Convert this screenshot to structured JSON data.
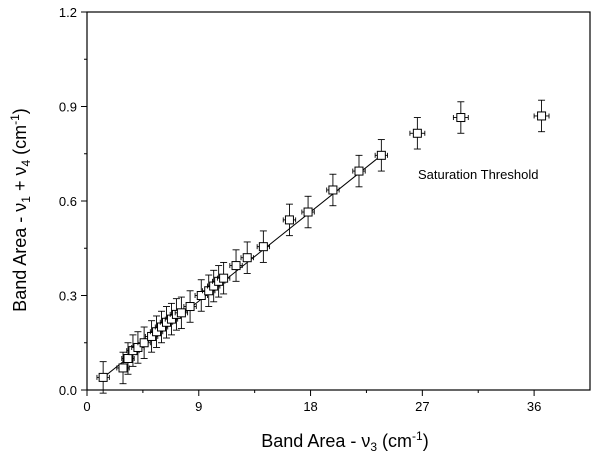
{
  "chart_data": {
    "type": "scatter",
    "title": "",
    "xlabel": {
      "prefix": "Band Area - ",
      "symbol": "ν",
      "sub": "3",
      "unit_open": " (cm",
      "sup": "-1",
      "unit_close": ")"
    },
    "ylabel": {
      "prefix": "Band Area -  ",
      "s1": "ν",
      "sub1": "1",
      "mid": " + ",
      "s2": "ν",
      "sub2": "4",
      "unit_open": " (cm",
      "sup": "-1",
      "unit_close": ")"
    },
    "xlim": [
      0,
      40.5
    ],
    "ylim": [
      0,
      1.2
    ],
    "xticks": [
      0,
      9,
      18,
      27,
      36
    ],
    "xtick_labels": [
      "0",
      "9",
      "18",
      "27",
      "36"
    ],
    "yticks": [
      0.0,
      0.3,
      0.6,
      0.9,
      1.2
    ],
    "ytick_labels": [
      "0.0",
      "0.3",
      "0.6",
      "0.9",
      "1.2"
    ],
    "grid": false,
    "annotation": {
      "text": "Saturation Threshold",
      "x": 31.5,
      "y": 0.685
    },
    "series": [
      {
        "points": [
          {
            "x": 1.3,
            "y": 0.04,
            "yerr": 0.05,
            "xerr": 0.5
          },
          {
            "x": 2.9,
            "y": 0.07,
            "yerr": 0.05,
            "xerr": 0.5
          },
          {
            "x": 3.3,
            "y": 0.1,
            "yerr": 0.05,
            "xerr": 0.5
          },
          {
            "x": 3.7,
            "y": 0.125,
            "yerr": 0.05,
            "xerr": 0.5
          },
          {
            "x": 4.1,
            "y": 0.135,
            "yerr": 0.05,
            "xerr": 0.5
          },
          {
            "x": 4.6,
            "y": 0.15,
            "yerr": 0.05,
            "xerr": 0.5
          },
          {
            "x": 5.2,
            "y": 0.17,
            "yerr": 0.05,
            "xerr": 0.5
          },
          {
            "x": 5.6,
            "y": 0.185,
            "yerr": 0.05,
            "xerr": 0.5
          },
          {
            "x": 6.0,
            "y": 0.2,
            "yerr": 0.05,
            "xerr": 0.5
          },
          {
            "x": 6.4,
            "y": 0.215,
            "yerr": 0.05,
            "xerr": 0.5
          },
          {
            "x": 6.8,
            "y": 0.225,
            "yerr": 0.05,
            "xerr": 0.5
          },
          {
            "x": 7.2,
            "y": 0.24,
            "yerr": 0.05,
            "xerr": 0.5
          },
          {
            "x": 7.6,
            "y": 0.245,
            "yerr": 0.05,
            "xerr": 0.5
          },
          {
            "x": 8.3,
            "y": 0.265,
            "yerr": 0.05,
            "xerr": 0.5
          },
          {
            "x": 9.2,
            "y": 0.3,
            "yerr": 0.05,
            "xerr": 0.5
          },
          {
            "x": 9.8,
            "y": 0.315,
            "yerr": 0.05,
            "xerr": 0.5
          },
          {
            "x": 10.2,
            "y": 0.33,
            "yerr": 0.05,
            "xerr": 0.5
          },
          {
            "x": 10.6,
            "y": 0.345,
            "yerr": 0.05,
            "xerr": 0.5
          },
          {
            "x": 11.0,
            "y": 0.355,
            "yerr": 0.05,
            "xerr": 0.5
          },
          {
            "x": 12.0,
            "y": 0.395,
            "yerr": 0.05,
            "xerr": 0.5
          },
          {
            "x": 12.9,
            "y": 0.42,
            "yerr": 0.05,
            "xerr": 0.5
          },
          {
            "x": 14.2,
            "y": 0.455,
            "yerr": 0.05,
            "xerr": 0.5
          },
          {
            "x": 16.3,
            "y": 0.54,
            "yerr": 0.05,
            "xerr": 0.5
          },
          {
            "x": 17.8,
            "y": 0.565,
            "yerr": 0.05,
            "xerr": 0.5
          },
          {
            "x": 19.8,
            "y": 0.635,
            "yerr": 0.05,
            "xerr": 0.5
          },
          {
            "x": 21.9,
            "y": 0.695,
            "yerr": 0.05,
            "xerr": 0.5
          },
          {
            "x": 23.7,
            "y": 0.745,
            "yerr": 0.05,
            "xerr": 0.5
          },
          {
            "x": 26.6,
            "y": 0.815,
            "yerr": 0.05,
            "xerr": 0.6
          },
          {
            "x": 30.1,
            "y": 0.865,
            "yerr": 0.05,
            "xerr": 0.6
          },
          {
            "x": 36.6,
            "y": 0.87,
            "yerr": 0.05,
            "xerr": 0.6
          }
        ]
      }
    ],
    "fit_line": {
      "x": [
        1.0,
        23.7
      ],
      "y": [
        0.03,
        0.745
      ]
    }
  }
}
